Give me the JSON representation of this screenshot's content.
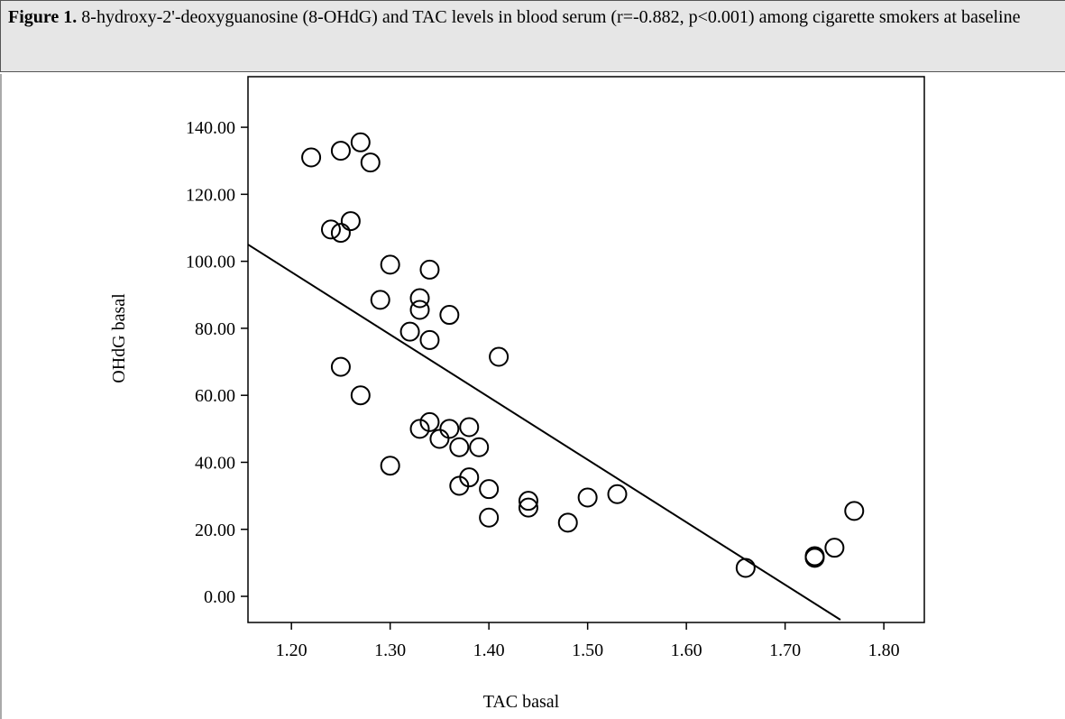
{
  "chart_data": {
    "type": "scatter",
    "caption_label": "Figure 1.",
    "caption": "8-hydroxy-2'-deoxyguanosine (8-OHdG) and TAC levels in blood serum (r=-0.882, p<0.001) among cigarette smokers at baseline",
    "x_label": "TAC basal",
    "y_label": "OHdG basal",
    "color": "#000000",
    "x": [
      1.22,
      1.25,
      1.27,
      1.28,
      1.24,
      1.25,
      1.26,
      1.3,
      1.34,
      1.29,
      1.33,
      1.33,
      1.36,
      1.32,
      1.34,
      1.41,
      1.25,
      1.27,
      1.34,
      1.33,
      1.36,
      1.38,
      1.35,
      1.37,
      1.39,
      1.3,
      1.38,
      1.37,
      1.4,
      1.44,
      1.44,
      1.4,
      1.5,
      1.53,
      1.48,
      1.66,
      1.73,
      1.73,
      1.75,
      1.77
    ],
    "values": [
      131,
      133,
      135.5,
      129.5,
      109.5,
      108.5,
      112,
      99,
      97.5,
      88.5,
      89,
      85.5,
      84,
      79,
      76.5,
      71.5,
      68.5,
      60,
      52,
      50,
      50,
      50.5,
      47,
      44.5,
      44.5,
      39,
      35.5,
      33,
      32,
      28.5,
      26.5,
      23.5,
      29.5,
      30.5,
      22,
      8.5,
      12,
      11.5,
      14.5,
      25.5
    ],
    "trend_line": {
      "x": [
        1.156,
        1.756
      ],
      "values": [
        105,
        -7
      ]
    },
    "xlim": [
      1.156,
      1.841
    ],
    "ylim": [
      -7.8,
      155.1
    ],
    "xticks": [
      {
        "value": 1.2,
        "label": "1.20"
      },
      {
        "value": 1.3,
        "label": "1.30"
      },
      {
        "value": 1.4,
        "label": "1.40"
      },
      {
        "value": 1.5,
        "label": "1.50"
      },
      {
        "value": 1.6,
        "label": "1.60"
      },
      {
        "value": 1.7,
        "label": "1.70"
      },
      {
        "value": 1.8,
        "label": "1.80"
      }
    ],
    "yticks": [
      {
        "value": 0,
        "label": "0.00"
      },
      {
        "value": 20,
        "label": "20.00"
      },
      {
        "value": 40,
        "label": "40.00"
      },
      {
        "value": 60,
        "label": "60.00"
      },
      {
        "value": 80,
        "label": "80.00"
      },
      {
        "value": 100,
        "label": "100.00"
      },
      {
        "value": 120,
        "label": "120.00"
      },
      {
        "value": 140,
        "label": "140.00"
      }
    ]
  }
}
